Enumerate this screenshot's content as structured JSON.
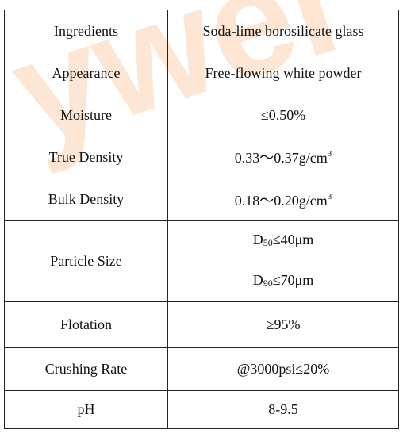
{
  "watermark": "ywel",
  "table": {
    "rows": [
      {
        "label": "Ingredients",
        "values": [
          "Soda-lime borosilicate glass"
        ]
      },
      {
        "label": "Appearance",
        "values": [
          "Free-flowing white powder"
        ]
      },
      {
        "label": "Moisture",
        "values": [
          "≤0.50%"
        ]
      },
      {
        "label": "True Density",
        "values": [
          {
            "text": "0.33～0.37g/cm",
            "sup": "3"
          }
        ]
      },
      {
        "label": "Bulk Density",
        "values": [
          {
            "text": "0.18～0.20g/cm",
            "sup": "3"
          }
        ]
      },
      {
        "label": "Particle Size",
        "values": [
          {
            "pre": "D",
            "sub": "50",
            "post": "≤40μm"
          },
          {
            "pre": "D",
            "sub": "90",
            "post": "≤70μm"
          }
        ]
      },
      {
        "label": "Flotation",
        "values": [
          "≥95%"
        ]
      },
      {
        "label": "Crushing Rate",
        "values": [
          "@3000psi≤20%"
        ]
      },
      {
        "label": "pH",
        "values": [
          "8-9.5"
        ]
      }
    ]
  }
}
